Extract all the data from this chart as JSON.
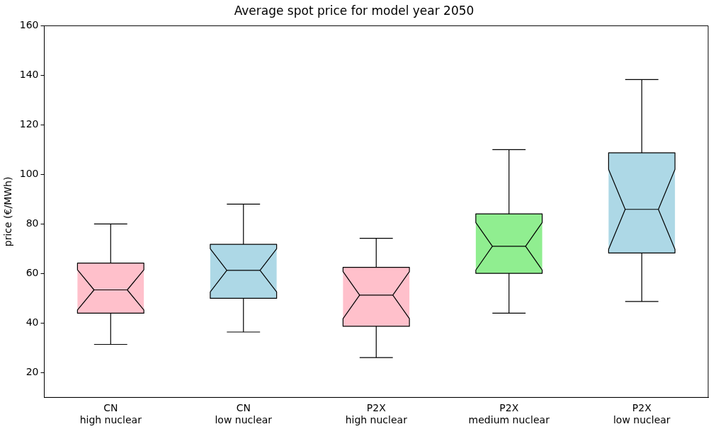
{
  "chart_data": {
    "type": "box",
    "title": "Average spot price for model year 2050",
    "ylabel": "price (€/MWh)",
    "categories": [
      "CN\nhigh nuclear",
      "CN\nlow nuclear",
      "P2X\nhigh nuclear",
      "P2X\nmedium nuclear",
      "P2X\nlow nuclear"
    ],
    "colors": [
      "#ffc0cb",
      "#add8e6",
      "#ffc0cb",
      "#90ee90",
      "#add8e6"
    ],
    "boxes": [
      {
        "low": 31.4,
        "q1": 44,
        "median": 53.4,
        "q3": 64.2,
        "high": 80
      },
      {
        "low": 36.4,
        "q1": 50,
        "median": 61.3,
        "q3": 71.8,
        "high": 88
      },
      {
        "low": 26.1,
        "q1": 38.7,
        "median": 51.3,
        "q3": 62.5,
        "high": 74.2
      },
      {
        "low": 44,
        "q1": 60.1,
        "median": 71,
        "q3": 84.1,
        "high": 110
      },
      {
        "low": 48.7,
        "q1": 68.3,
        "median": 85.9,
        "q3": 108.7,
        "high": 138.3
      }
    ],
    "ylim": [
      10,
      160
    ],
    "yticks": [
      20,
      40,
      60,
      80,
      100,
      120,
      140,
      160
    ],
    "grid": false
  }
}
